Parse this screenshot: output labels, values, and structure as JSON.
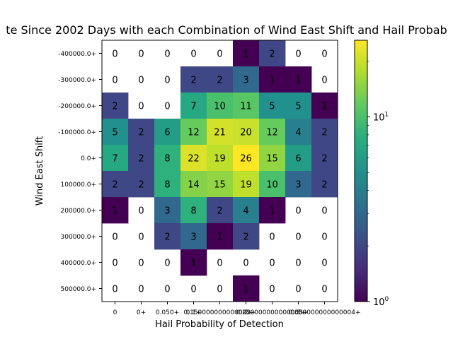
{
  "chart_data": {
    "type": "heatmap",
    "title": "te Since 2002 Days with each Combination of Wind East Shift and Hail Probab",
    "xlabel": "Hail Probability of Detection",
    "ylabel": "Wind East Shift",
    "x_categories": [
      "0",
      "0+",
      "0.05+",
      "0.1+",
      "0.15+",
      "0.2+",
      "0.25+",
      "0.3+",
      "0.35+"
    ],
    "x_tick_labels": [
      "0",
      "0+",
      "0.050+",
      "0.1+",
      "0.150000000000002+",
      "0.2+",
      "0.250000000000003+",
      "0.3+",
      "0.350000000000004+"
    ],
    "y_categories": [
      "-400000.0+",
      "-300000.0+",
      "-200000.0+",
      "-100000.0+",
      "0.0+",
      "100000.0+",
      "200000.0+",
      "300000.0+",
      "400000.0+",
      "500000.0+"
    ],
    "values": [
      [
        0,
        0,
        0,
        0,
        0,
        1,
        2,
        0,
        0
      ],
      [
        0,
        0,
        0,
        2,
        2,
        3,
        1,
        1,
        0
      ],
      [
        2,
        0,
        0,
        7,
        10,
        11,
        5,
        5,
        1
      ],
      [
        5,
        2,
        6,
        12,
        21,
        20,
        12,
        4,
        2
      ],
      [
        7,
        2,
        8,
        22,
        19,
        26,
        15,
        6,
        2
      ],
      [
        2,
        2,
        8,
        14,
        15,
        19,
        10,
        3,
        2
      ],
      [
        1,
        0,
        3,
        8,
        2,
        4,
        1,
        0,
        0
      ],
      [
        0,
        0,
        2,
        3,
        1,
        2,
        0,
        0,
        0
      ],
      [
        0,
        0,
        0,
        1,
        0,
        0,
        0,
        0,
        0
      ],
      [
        0,
        0,
        0,
        0,
        0,
        1,
        0,
        0,
        0
      ]
    ],
    "color_scale": "log",
    "colormap": "viridis",
    "colorbar_range": [
      1,
      26
    ],
    "colorbar_tick_labels": [
      "10^0",
      "10^1"
    ],
    "zero_color": "#ffffff",
    "grid": false
  }
}
